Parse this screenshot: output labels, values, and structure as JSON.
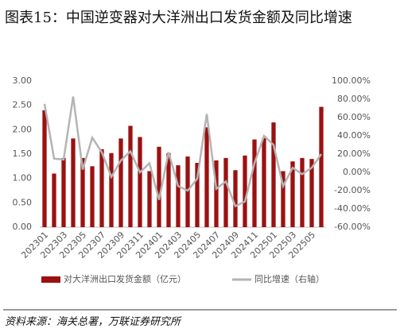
{
  "chart_data": {
    "type": "bar-line",
    "title": "图表15：中国逆变器对大洋洲出口发货金额及同比增速",
    "source": "资料来源：海关总署，万联证券研究所",
    "categories": [
      "202301",
      null,
      "202303",
      null,
      "202305",
      null,
      "202307",
      null,
      "202309",
      null,
      "202311",
      null,
      "202401",
      null,
      "202403",
      null,
      "202405",
      null,
      "202407",
      null,
      "202409",
      null,
      "202411",
      null,
      "202501",
      null,
      "202503",
      null,
      "202505",
      null
    ],
    "series": [
      {
        "name": "对大洋洲出口发货金额（亿元）",
        "type": "bar",
        "color": "#9b1111",
        "values": [
          2.4,
          1.1,
          1.42,
          1.82,
          1.42,
          1.25,
          1.6,
          1.52,
          1.82,
          2.08,
          1.85,
          1.15,
          1.65,
          1.52,
          1.27,
          1.45,
          1.32,
          2.05,
          1.37,
          1.42,
          1.17,
          1.47,
          1.8,
          1.83,
          2.15,
          1.15,
          1.35,
          1.42,
          1.4,
          2.47
        ]
      },
      {
        "name": "同比增速（右轴）",
        "type": "line",
        "axis": "y2",
        "color": "#b4b4b4",
        "values": [
          75,
          15,
          14,
          83,
          3,
          38,
          22,
          -5,
          13,
          23,
          0,
          10,
          -30,
          22,
          -15,
          -20,
          -7,
          64,
          -18,
          -10,
          -37,
          -32,
          10,
          40,
          30,
          -15,
          5,
          -2,
          5,
          20
        ]
      }
    ],
    "ylim": [
      0,
      3
    ],
    "yticks": [
      {
        "value": 0,
        "label": "0.00"
      },
      {
        "value": 0.5,
        "label": "0.50"
      },
      {
        "value": 1,
        "label": "1.00"
      },
      {
        "value": 1.5,
        "label": "1.50"
      },
      {
        "value": 2,
        "label": "2.00"
      },
      {
        "value": 2.5,
        "label": "2.50"
      },
      {
        "value": 3,
        "label": "3.00"
      }
    ],
    "y2lim": [
      -60,
      100
    ],
    "y2ticks": [
      {
        "value": -60,
        "label": "-60.00%"
      },
      {
        "value": -40,
        "label": "-40.00%"
      },
      {
        "value": -20,
        "label": "-20.00%"
      },
      {
        "value": 0,
        "label": "0.00%"
      },
      {
        "value": 20,
        "label": "20.00%"
      },
      {
        "value": 40,
        "label": "40.00%"
      },
      {
        "value": 60,
        "label": "60.00%"
      },
      {
        "value": 80,
        "label": "80.00%"
      },
      {
        "value": 100,
        "label": "100.00%"
      }
    ],
    "grid": false
  }
}
